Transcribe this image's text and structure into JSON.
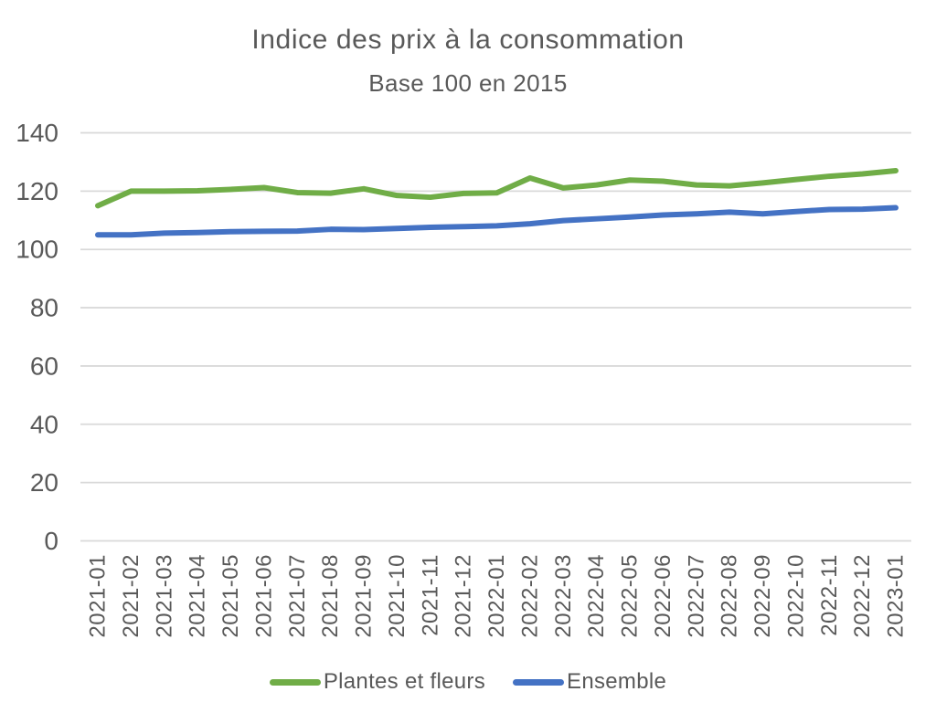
{
  "chart_data": {
    "type": "line",
    "title": "Indice des prix à la consommation",
    "subtitle": "Base 100 en 2015",
    "categories": [
      "2021-01",
      "2021-02",
      "2021-03",
      "2021-04",
      "2021-05",
      "2021-06",
      "2021-07",
      "2021-08",
      "2021-09",
      "2021-10",
      "2021-11",
      "2021-12",
      "2022-01",
      "2022-02",
      "2022-03",
      "2022-04",
      "2022-05",
      "2022-06",
      "2022-07",
      "2022-08",
      "2022-09",
      "2022-10",
      "2022-11",
      "2022-12",
      "2023-01"
    ],
    "series": [
      {
        "name": "Plantes et fleurs",
        "color": "#70AD47",
        "values": [
          115.0,
          120.0,
          120.0,
          120.1,
          120.6,
          121.2,
          119.5,
          119.3,
          120.8,
          118.5,
          117.9,
          119.2,
          119.4,
          124.5,
          121.1,
          122.1,
          123.8,
          123.4,
          122.1,
          121.8,
          122.8,
          124.0,
          125.1,
          125.9,
          127.0
        ]
      },
      {
        "name": "Ensemble",
        "color": "#4472C4",
        "values": [
          105.0,
          105.0,
          105.6,
          105.8,
          106.1,
          106.2,
          106.3,
          106.9,
          106.8,
          107.2,
          107.6,
          107.8,
          108.1,
          108.8,
          109.9,
          110.5,
          111.1,
          111.8,
          112.2,
          112.8,
          112.2,
          113.0,
          113.7,
          113.8,
          114.3
        ]
      }
    ],
    "ylim": [
      0,
      140
    ],
    "ytick_step": 20,
    "yticks": [
      0,
      20,
      40,
      60,
      80,
      100,
      120,
      140
    ],
    "grid": "horizontal",
    "legend_position": "bottom"
  },
  "colors": {
    "text": "#595959",
    "gridline": "#D9D9D9",
    "background": "#FFFFFF"
  }
}
